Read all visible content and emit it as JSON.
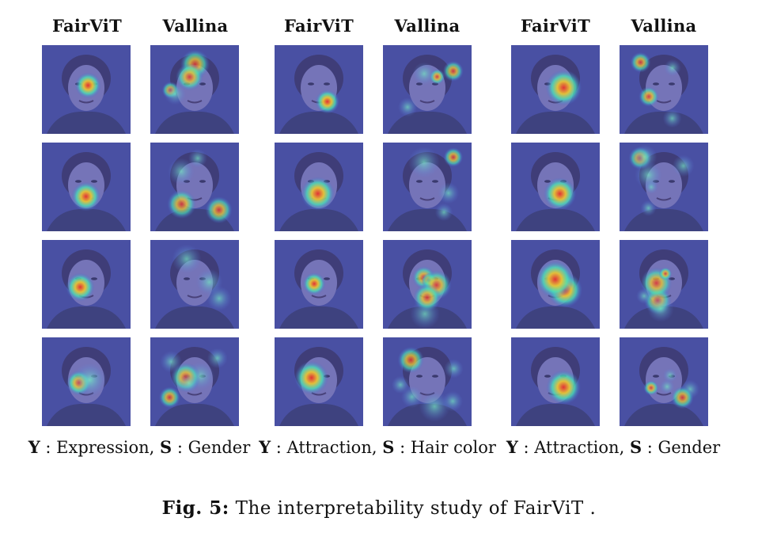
{
  "groups": [
    {
      "headers": [
        "FairViT",
        "Vallina"
      ],
      "caption": {
        "y_symbol": "Y",
        "y_value": "Expression",
        "s_symbol": "S",
        "s_value": "Gender"
      }
    },
    {
      "headers": [
        "FairViT",
        "Vallina"
      ],
      "caption": {
        "y_symbol": "Y",
        "y_value": "Attraction",
        "s_symbol": "S",
        "s_value": "Hair color"
      }
    },
    {
      "headers": [
        "FairViT",
        "Vallina"
      ],
      "caption": {
        "y_symbol": "Y",
        "y_value": "Attraction",
        "s_symbol": "S",
        "s_value": "Gender"
      }
    }
  ],
  "figure": {
    "label": "Fig. 5:",
    "text": "The interpretability study of FairViT ."
  }
}
